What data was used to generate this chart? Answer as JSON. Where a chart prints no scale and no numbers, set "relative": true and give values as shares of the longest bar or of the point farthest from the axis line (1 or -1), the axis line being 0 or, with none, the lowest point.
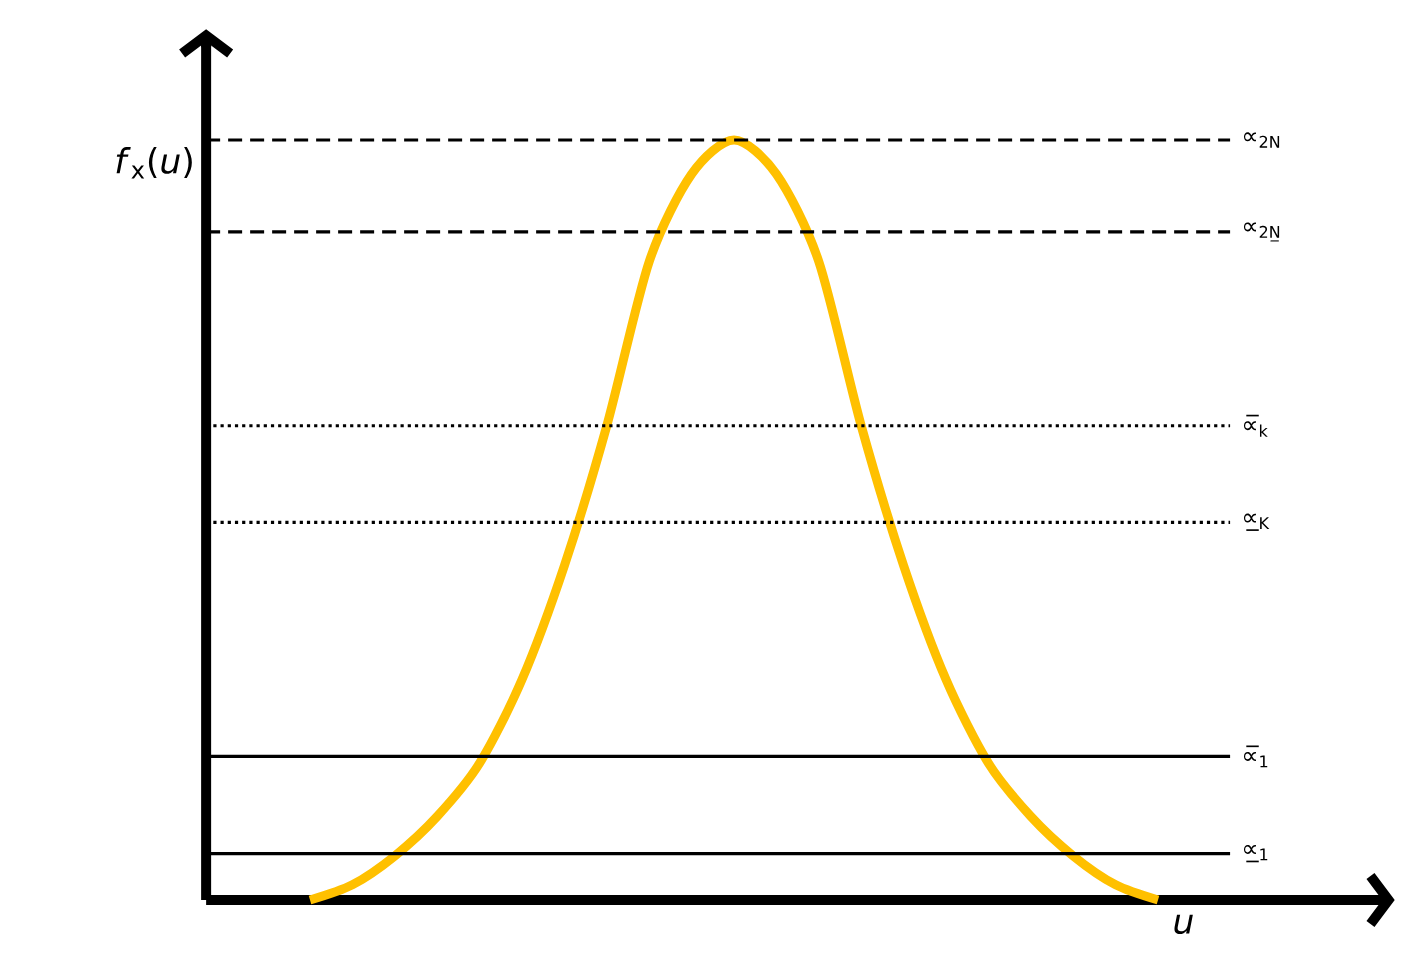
{
  "chart_data": {
    "type": "line",
    "relative": true,
    "categories": [
      null,
      null,
      null,
      null,
      null,
      null,
      null,
      null,
      null,
      null,
      null,
      null,
      null,
      null,
      null,
      null,
      null,
      null,
      null,
      null,
      null
    ],
    "series": [
      {
        "color": "#ffc000",
        "values": [
          0,
          0.02,
          0.058,
          0.11,
          0.18,
          0.29,
          0.44,
          0.624,
          0.84,
          0.955,
          1,
          0.955,
          0.84,
          0.624,
          0.44,
          0.29,
          0.18,
          0.11,
          0.058,
          0.02,
          0
        ]
      }
    ],
    "xlabel": "*u*",
    "ylabel": "*f*$_{x}$(*u*)",
    "ref_lines": [
      {
        "axis": "y",
        "value": 1.0,
        "label": "∝$_{2N}$",
        "line_style": "dashed"
      },
      {
        "axis": "y",
        "value": 0.879,
        "label": "∝$_{2N̲}$",
        "line_style": "dashed"
      },
      {
        "axis": "y",
        "value": 0.624,
        "label": "∝̅$_{k}$",
        "line_style": "dotted"
      },
      {
        "axis": "y",
        "value": 0.497,
        "label": "∝̲$_{K}$",
        "line_style": "dotted"
      },
      {
        "axis": "y",
        "value": 0.189,
        "label": "∝̅$_{1}$",
        "line_style": "solid"
      },
      {
        "axis": "y",
        "value": 0.061,
        "label": "∝̲$_{1}$",
        "line_style": "solid"
      }
    ],
    "grid": false,
    "legend": false,
    "marker": "none",
    "line_style": "solid",
    "tick_labels": false
  }
}
